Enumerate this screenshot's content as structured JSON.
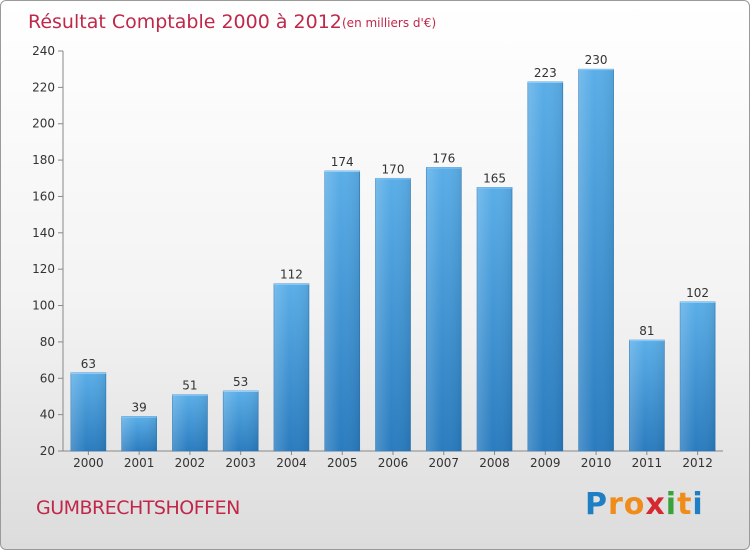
{
  "chart_data": {
    "type": "bar",
    "title": "Résultat Comptable 2000 à 2012",
    "subtitle": "(en milliers d'€)",
    "categories": [
      "2000",
      "2001",
      "2002",
      "2003",
      "2004",
      "2005",
      "2006",
      "2007",
      "2008",
      "2009",
      "2010",
      "2011",
      "2012"
    ],
    "values": [
      63,
      39,
      51,
      53,
      112,
      174,
      170,
      176,
      165,
      223,
      230,
      81,
      102
    ],
    "ylim": [
      20,
      240
    ],
    "yticks": [
      20,
      40,
      60,
      80,
      100,
      120,
      140,
      160,
      180,
      200,
      220,
      240
    ],
    "xlabel": "",
    "ylabel": "",
    "grid": false,
    "bar_color_top": "#5aaee8",
    "bar_color_bottom": "#2a7cbf"
  },
  "footer": {
    "commune": "GUMBRECHTSHOFFEN",
    "logo_letters": [
      "P",
      "r",
      "o",
      "x",
      "i",
      "t",
      "i"
    ],
    "logo_colors": [
      "#1f7fc4",
      "#f08c1a",
      "#f08c1a",
      "#d6292f",
      "#3aa23a",
      "#f08c1a",
      "#1f7fc4"
    ]
  }
}
